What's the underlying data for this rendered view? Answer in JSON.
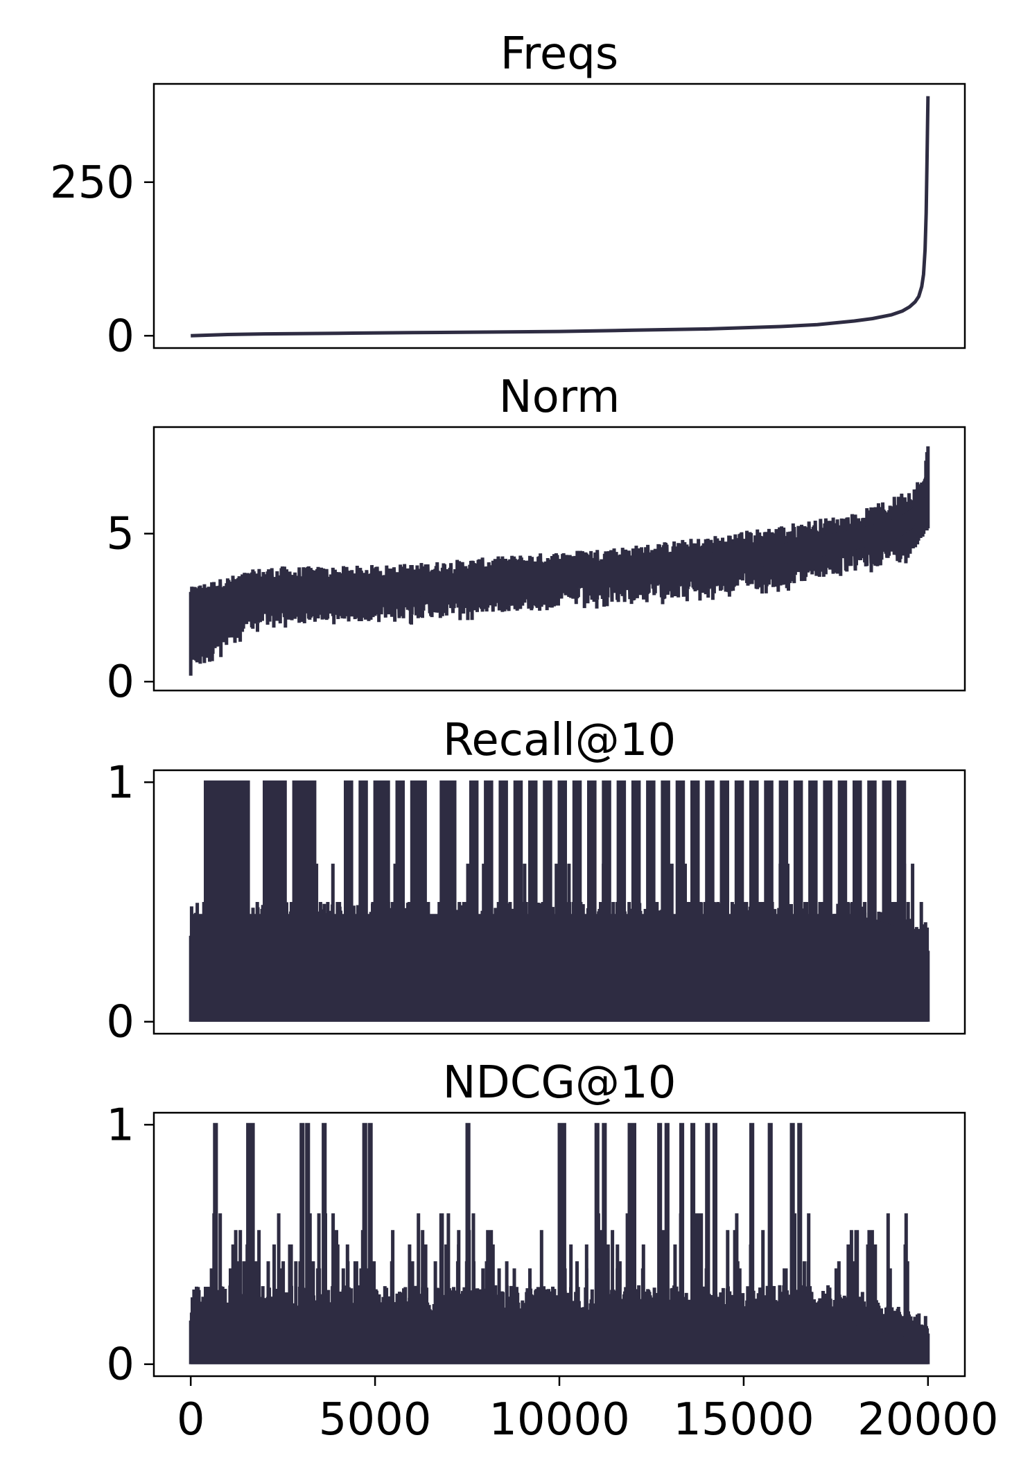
{
  "colors": {
    "line": "#2e2c42",
    "axes": "#000000",
    "background": "#ffffff"
  },
  "chart_data": [
    {
      "type": "line",
      "title": "Freqs",
      "xlabel": "",
      "ylabel": "",
      "xlim": [
        -1000,
        21000
      ],
      "ylim": [
        -20,
        410
      ],
      "yticks": [
        0,
        250
      ],
      "ytick_labels": [
        "0",
        "250"
      ],
      "x": [
        0,
        1000,
        2000,
        4000,
        6000,
        8000,
        10000,
        12000,
        14000,
        15000,
        16000,
        17000,
        18000,
        18500,
        19000,
        19300,
        19500,
        19650,
        19750,
        19830,
        19880,
        19920,
        19950,
        19970,
        19985,
        20000
      ],
      "y": [
        0,
        2,
        3,
        4,
        5,
        6,
        7,
        9,
        11,
        13,
        15,
        18,
        24,
        28,
        34,
        40,
        47,
        55,
        64,
        80,
        100,
        140,
        200,
        270,
        330,
        390
      ],
      "style": "smooth curve"
    },
    {
      "type": "line",
      "title": "Norm",
      "xlabel": "",
      "ylabel": "",
      "xlim": [
        -1000,
        21000
      ],
      "ylim": [
        -0.3,
        8.6
      ],
      "yticks": [
        0,
        5
      ],
      "ytick_labels": [
        "0",
        "5"
      ],
      "style": "dense noisy band",
      "x": [
        0,
        2000,
        4000,
        6000,
        8000,
        10000,
        12000,
        14000,
        16000,
        18000,
        19000,
        19500,
        19900,
        20000
      ],
      "y_mean": [
        2.8,
        2.9,
        3.0,
        3.2,
        3.4,
        3.6,
        3.8,
        4.0,
        4.3,
        4.8,
        5.1,
        5.4,
        5.9,
        7.6
      ],
      "y_min": [
        0.2,
        1.9,
        2.0,
        2.1,
        2.3,
        2.5,
        2.7,
        2.9,
        3.2,
        3.7,
        4.0,
        4.2,
        4.8,
        4.8
      ],
      "y_max": [
        3.2,
        3.9,
        3.9,
        4.0,
        4.2,
        4.4,
        4.6,
        4.9,
        5.3,
        5.7,
        6.2,
        6.6,
        7.0,
        8.2
      ]
    },
    {
      "type": "line",
      "title": "Recall@10",
      "xlabel": "",
      "ylabel": "",
      "xlim": [
        -1000,
        21000
      ],
      "ylim": [
        -0.05,
        1.05
      ],
      "yticks": [
        0,
        1
      ],
      "ytick_labels": [
        "0",
        "1"
      ],
      "style": "dense spikes from 0",
      "x": [
        0,
        2000,
        4000,
        6000,
        8000,
        10000,
        12000,
        14000,
        16000,
        18000,
        19000,
        20000
      ],
      "y_band": [
        0.5,
        0.5,
        0.5,
        0.5,
        0.5,
        0.5,
        0.5,
        0.5,
        0.5,
        0.5,
        0.45,
        0.42
      ],
      "peaks_at_1": [
        400,
        600,
        800,
        1000,
        1200,
        1400,
        2000,
        2200,
        2400,
        2800,
        3000,
        3200,
        4200,
        4600,
        5000,
        5200,
        5600,
        6000,
        6200,
        6800,
        7000,
        7600,
        8000,
        8400,
        8800,
        9200,
        9600,
        10000,
        10400,
        10800,
        11200,
        11600,
        12000,
        12400,
        12800,
        13200,
        13600,
        14000,
        14400,
        14800,
        15200,
        15600,
        16000,
        16400,
        16800,
        17200,
        17600,
        18000,
        18400,
        18800,
        19200
      ]
    },
    {
      "type": "line",
      "title": "NDCG@10",
      "xlabel": "",
      "ylabel": "",
      "xlim": [
        -1000,
        21000
      ],
      "ylim": [
        -0.05,
        1.05
      ],
      "yticks": [
        0,
        1
      ],
      "ytick_labels": [
        "0",
        "1"
      ],
      "xticks": [
        0,
        5000,
        10000,
        15000,
        20000
      ],
      "xtick_labels": [
        "0",
        "5000",
        "10000",
        "15000",
        "20000"
      ],
      "style": "dense spikes from 0",
      "x": [
        0,
        2000,
        4000,
        6000,
        8000,
        10000,
        12000,
        14000,
        16000,
        18000,
        19000,
        20000
      ],
      "y_band": [
        0.33,
        0.33,
        0.33,
        0.33,
        0.33,
        0.33,
        0.33,
        0.33,
        0.33,
        0.33,
        0.25,
        0.2
      ],
      "peaks_at_1": [
        650,
        1550,
        1650,
        3000,
        3150,
        3600,
        4700,
        4850,
        7500,
        10000,
        10100,
        11000,
        11200,
        11900,
        12000,
        12700,
        12900,
        13300,
        13600,
        14000,
        14200,
        15200,
        15700,
        16300,
        16500
      ]
    }
  ]
}
